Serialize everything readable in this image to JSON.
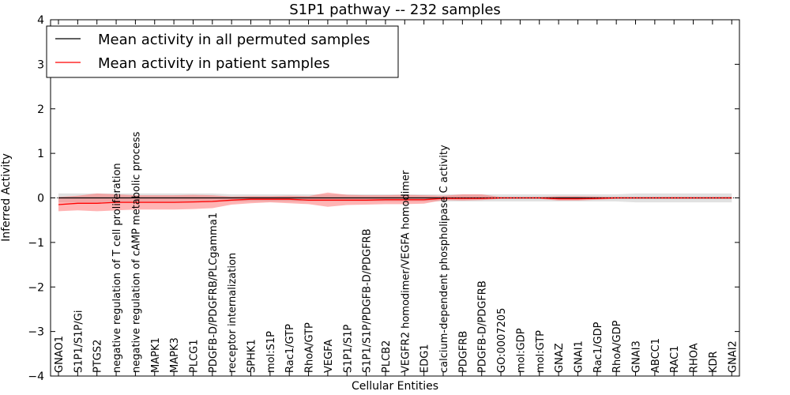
{
  "chart_data": {
    "type": "line",
    "title": "S1P1 pathway -- 232 samples",
    "xlabel": "Cellular Entities",
    "ylabel": "Inferred Activity",
    "ylim": [
      -4,
      4
    ],
    "yticks": [
      "4",
      "3",
      "2",
      "1",
      "0",
      "−1",
      "−2",
      "−3",
      "−4"
    ],
    "yticks_values": [
      4,
      3,
      2,
      1,
      0,
      -1,
      -2,
      -3,
      -4
    ],
    "legend": {
      "position": "top-left",
      "entries": [
        "Mean activity in all permuted samples",
        "Mean activity in patient samples"
      ]
    },
    "categories": [
      "GNAO1",
      "S1P1/S1P/Gi",
      "PTGS2",
      "negative regulation of T cell proliferation",
      "negative regulation of cAMP metabolic process",
      "MAPK1",
      "MAPK3",
      "PLCG1",
      "PDGFB-D/PDGFRB/PLCgamma1",
      "receptor internalization",
      "SPHK1",
      "mol:S1P",
      "Rac1/GTP",
      "RhoA/GTP",
      "VEGFA",
      "S1P1/S1P",
      "S1P1/S1P/PDGFB-D/PDGFRB",
      "PLCB2",
      "VEGFR2 homodimer/VEGFA homodimer",
      "EDG1",
      "calcium-dependent phospholipase C activity",
      "PDGFRB",
      "PDGFB-D/PDGFRB",
      "GO:0007205",
      "mol:GDP",
      "mol:GTP",
      "GNAZ",
      "GNAI1",
      "Rac1/GDP",
      "RhoA/GDP",
      "GNAI3",
      "ABCC1",
      "RAC1",
      "RHOA",
      "KDR",
      "GNAI2"
    ],
    "series": [
      {
        "name": "Mean activity in all permuted samples",
        "color": "#000000",
        "values": [
          0,
          0,
          0,
          0,
          0,
          0,
          0,
          0,
          0,
          0,
          0,
          0,
          0,
          0,
          0,
          0,
          0,
          0,
          0,
          0,
          0,
          0,
          0,
          0,
          0,
          0,
          0,
          0,
          0,
          0,
          0,
          0,
          0,
          0,
          0,
          0
        ],
        "band_lower": [
          -0.1,
          -0.1,
          -0.1,
          -0.1,
          -0.1,
          -0.1,
          -0.1,
          -0.1,
          -0.1,
          -0.08,
          -0.08,
          -0.08,
          -0.08,
          -0.08,
          -0.08,
          -0.08,
          -0.08,
          -0.08,
          -0.08,
          -0.08,
          -0.08,
          -0.08,
          -0.08,
          -0.08,
          -0.08,
          -0.08,
          -0.08,
          -0.08,
          -0.08,
          -0.08,
          -0.1,
          -0.1,
          -0.1,
          -0.1,
          -0.1,
          -0.1
        ],
        "band_upper": [
          0.1,
          0.1,
          0.1,
          0.1,
          0.1,
          0.1,
          0.1,
          0.1,
          0.1,
          0.08,
          0.08,
          0.08,
          0.08,
          0.08,
          0.08,
          0.08,
          0.08,
          0.08,
          0.08,
          0.08,
          0.08,
          0.08,
          0.08,
          0.08,
          0.08,
          0.08,
          0.08,
          0.08,
          0.08,
          0.08,
          0.1,
          0.1,
          0.1,
          0.1,
          0.1,
          0.1
        ],
        "band_color": "#c8c8c8"
      },
      {
        "name": "Mean activity in patient samples",
        "color": "#ff0000",
        "values": [
          -0.15,
          -0.12,
          -0.12,
          -0.1,
          -0.1,
          -0.1,
          -0.1,
          -0.09,
          -0.08,
          -0.05,
          -0.03,
          -0.03,
          -0.03,
          -0.05,
          -0.05,
          -0.05,
          -0.05,
          -0.04,
          -0.04,
          -0.04,
          -0.01,
          -0.01,
          -0.01,
          0,
          0,
          0,
          -0.02,
          -0.02,
          -0.01,
          0,
          0,
          0,
          0,
          0,
          0,
          0
        ],
        "band_lower": [
          -0.3,
          -0.28,
          -0.3,
          -0.28,
          -0.26,
          -0.26,
          -0.26,
          -0.25,
          -0.23,
          -0.15,
          -0.12,
          -0.1,
          -0.12,
          -0.14,
          -0.2,
          -0.16,
          -0.15,
          -0.14,
          -0.14,
          -0.13,
          -0.05,
          -0.06,
          -0.05,
          -0.02,
          -0.02,
          -0.02,
          -0.06,
          -0.06,
          -0.04,
          -0.02,
          -0.02,
          -0.02,
          -0.02,
          -0.02,
          -0.02,
          -0.02
        ],
        "band_upper": [
          0.02,
          0.05,
          0.1,
          0.08,
          0.06,
          0.06,
          0.06,
          0.07,
          0.06,
          0.03,
          0.04,
          0.04,
          0.05,
          0.04,
          0.12,
          0.07,
          0.06,
          0.06,
          0.07,
          0.06,
          0.05,
          0.08,
          0.08,
          0.02,
          0.02,
          0.02,
          0.04,
          0.04,
          0.03,
          0.02,
          0.02,
          0.02,
          0.02,
          0.02,
          0.02,
          0.02
        ],
        "band_color": "#ff6a6a"
      }
    ],
    "grid": false
  }
}
